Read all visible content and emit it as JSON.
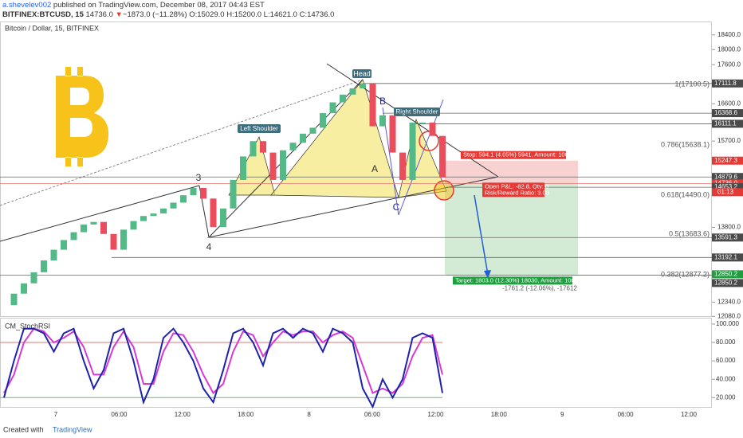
{
  "header": {
    "author": "a.shevelev002",
    "published": "published on TradingView.com, December 08, 2017 04:43 EST",
    "symbol": "BITFINEX:BTCUSD, 15",
    "last": "14736.0",
    "arrow": "▼",
    "change": "−1873.0 (−11.28%)",
    "ohlc": "O:15029.0 H:15200.0 L:14621.0 C:14736.0"
  },
  "pane_title": "Bitcoin / Dollar, 15, BITFINEX",
  "price": {
    "log": true,
    "ylim": [
      12070,
      18750
    ],
    "ticks": [
      {
        "value": 18400,
        "label": "18400.0"
      },
      {
        "value": 18000,
        "label": "18000.0"
      },
      {
        "value": 17600,
        "label": "17600.0"
      },
      {
        "value": 16600,
        "label": "16600.0"
      },
      {
        "value": 15700,
        "label": "15700.0"
      },
      {
        "value": 13800,
        "label": "13800.0"
      },
      {
        "value": 12340,
        "label": "12340.0"
      },
      {
        "value": 12080,
        "label": "12080.0"
      }
    ],
    "closes": [
      12285,
      12498,
      12692,
      12904,
      13134,
      13346,
      13541,
      13700,
      13859,
      13912,
      13664,
      13346,
      13753,
      13930,
      14036,
      14089,
      14195,
      14319,
      14478,
      14637,
      14407,
      13806,
      14195,
      14814,
      15344,
      15698,
      15432,
      14814,
      15485,
      15662,
      15874,
      16016,
      16369,
      16635,
      16829,
      16988,
      17112,
      16051,
      16316,
      15432,
      14814,
      16140,
      16140,
      15821,
      14867
    ],
    "up_color": "#53b987",
    "down_color": "#eb4d5c",
    "levels": [
      {
        "value": 17111.8,
        "color": "#4a4a4a"
      },
      {
        "value": 16368.6,
        "color": "#4a4a4a"
      },
      {
        "value": 16111.1,
        "color": "#4a4a4a"
      },
      {
        "value": 15247.3,
        "color": "#e53935"
      },
      {
        "value": 14879.6,
        "color": "#4a4a4a"
      },
      {
        "value": 14736,
        "label": "14736.0",
        "color": "#e53935"
      },
      {
        "value": 14653.2,
        "color": "#4a4a4a"
      },
      {
        "value": 13591.3,
        "color": "#4a4a4a"
      },
      {
        "value": 13192.1,
        "color": "#4a4a4a"
      },
      {
        "value": 12850.2,
        "color": "#1e9e3e"
      },
      {
        "value": 12850.2,
        "color": "#4a4a4a"
      }
    ],
    "countdown": "01:13"
  },
  "annotations": {
    "head": "Head",
    "left_shoulder": "Left Shoulder",
    "right_shoulder": "Right Shoulder",
    "a": "A",
    "b": "B",
    "c": "C",
    "p3": "3",
    "p4": "4",
    "fib": [
      "1(17100.5)",
      "0.786(15638.1)",
      "0.618(14490.0)",
      "0.5(13683.6)",
      "0.382(12877.2)"
    ],
    "stop": "Stop: 594.1 (4.05%) 5941, Amount: 1000",
    "pnl": "Open P&L: -82.8, Qty: 0",
    "rr": "Risk/Reward Ratio: 3.03",
    "target": "Target: 1803.0 (12.30%) 18030, Amount: 1000",
    "drop": "-1761.2 (-12.06%), -17612"
  },
  "stoch": {
    "title": "CM_StochRSI",
    "ylim": [
      9,
      106
    ],
    "ticks": [
      {
        "value": 100,
        "label": "100.000"
      },
      {
        "value": 80,
        "label": "80.000"
      },
      {
        "value": 60,
        "label": "60.000"
      },
      {
        "value": 40,
        "label": "40.000"
      },
      {
        "value": 20,
        "label": "20.000"
      }
    ],
    "bands": [
      {
        "value": 80,
        "color": "#e57373"
      },
      {
        "value": 20,
        "color": "#66bb6a"
      }
    ],
    "k": {
      "color": "#1e22aa",
      "values": [
        20,
        60,
        95,
        95,
        90,
        70,
        90,
        95,
        60,
        30,
        50,
        90,
        95,
        60,
        15,
        40,
        85,
        95,
        80,
        60,
        30,
        15,
        50,
        90,
        95,
        80,
        55,
        90,
        95,
        85,
        95,
        90,
        70,
        95,
        90,
        80,
        30,
        10,
        40,
        20,
        40,
        85,
        90,
        85,
        25
      ]
    },
    "d": {
      "color": "#d63ad6",
      "values": [
        25,
        45,
        80,
        95,
        92,
        80,
        85,
        92,
        75,
        45,
        45,
        75,
        92,
        75,
        35,
        35,
        70,
        90,
        88,
        70,
        45,
        25,
        35,
        70,
        92,
        88,
        65,
        80,
        92,
        88,
        92,
        92,
        80,
        88,
        92,
        85,
        55,
        25,
        30,
        25,
        35,
        65,
        85,
        88,
        45
      ]
    }
  },
  "time_axis": [
    "7",
    "06:00",
    "12:00",
    "18:00",
    "8",
    "06:00",
    "12:00",
    "18:00",
    "9",
    "06:00",
    "12:00"
  ],
  "footer": {
    "created": "Created with",
    "brand": "TradingView"
  }
}
